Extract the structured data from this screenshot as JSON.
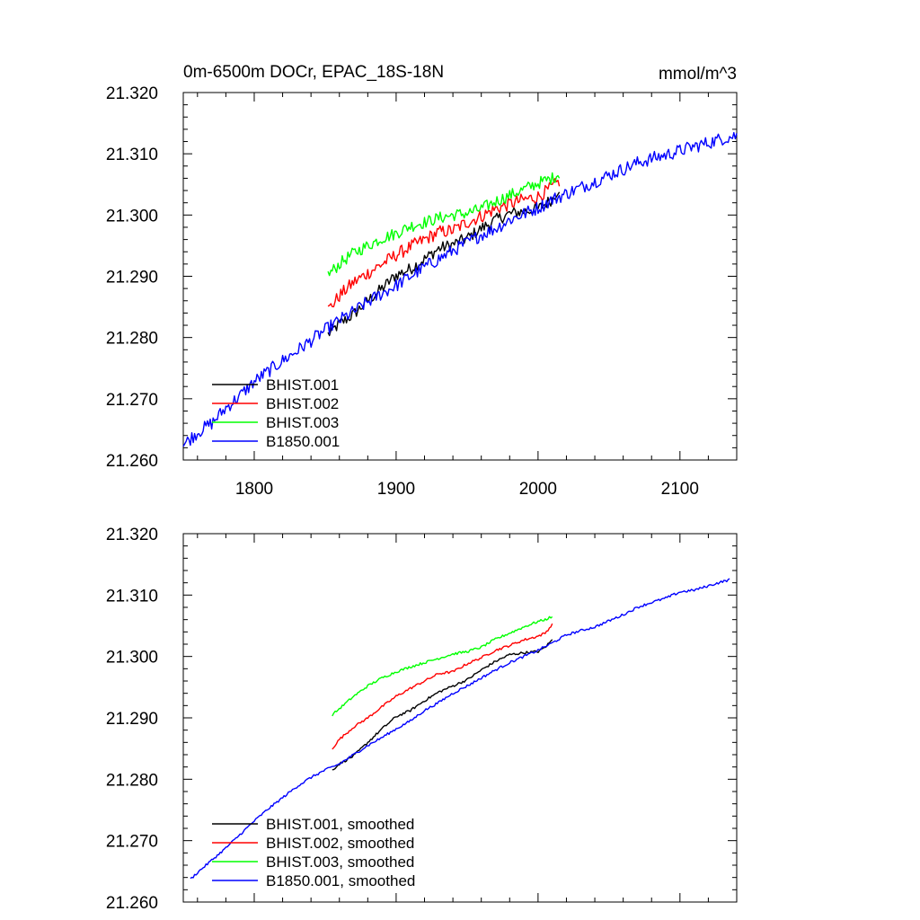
{
  "chart_data": [
    {
      "type": "line",
      "title": "0m-6500m DOCr, EPAC_18S-18N",
      "units": "mmol/m^3",
      "xlim": [
        1750,
        2140
      ],
      "ylim": [
        21.26,
        21.32
      ],
      "xticks": [
        "1800",
        "1900",
        "2000",
        "2100"
      ],
      "yticks": [
        "21.260",
        "21.270",
        "21.280",
        "21.290",
        "21.300",
        "21.310",
        "21.320"
      ],
      "legend_position": "lower-left",
      "series": [
        {
          "name": "BHIST.001",
          "color": "#000000",
          "x": [
            1852,
            1860,
            1870,
            1880,
            1890,
            1900,
            1910,
            1920,
            1930,
            1940,
            1950,
            1960,
            1970,
            1980,
            1990,
            2000,
            2010,
            2015
          ],
          "y": [
            21.2805,
            21.2822,
            21.2838,
            21.286,
            21.288,
            21.2902,
            21.2912,
            21.2928,
            21.2945,
            21.2952,
            21.2962,
            21.2978,
            21.2992,
            21.3002,
            21.3006,
            21.301,
            21.3026,
            21.3045
          ],
          "noise": 0.001
        },
        {
          "name": "BHIST.002",
          "color": "#ff0000",
          "x": [
            1852,
            1860,
            1870,
            1880,
            1890,
            1900,
            1910,
            1920,
            1930,
            1940,
            1950,
            1960,
            1970,
            1980,
            1990,
            2000,
            2010,
            2015
          ],
          "y": [
            21.2845,
            21.2868,
            21.289,
            21.2905,
            21.292,
            21.2935,
            21.2948,
            21.296,
            21.2972,
            21.2975,
            21.2988,
            21.2998,
            21.301,
            21.3018,
            21.3025,
            21.303,
            21.3045,
            21.3055
          ],
          "noise": 0.0011
        },
        {
          "name": "BHIST.003",
          "color": "#00ff00",
          "x": [
            1852,
            1860,
            1870,
            1880,
            1890,
            1900,
            1910,
            1920,
            1930,
            1940,
            1950,
            1960,
            1970,
            1980,
            1990,
            2000,
            2010,
            2015
          ],
          "y": [
            21.2902,
            21.292,
            21.2938,
            21.295,
            21.2962,
            21.297,
            21.2982,
            21.2988,
            21.2995,
            21.3,
            21.3003,
            21.301,
            21.3022,
            21.3032,
            21.3042,
            21.3052,
            21.306,
            21.3068
          ],
          "noise": 0.001
        },
        {
          "name": "B1850.001",
          "color": "#0000ff",
          "x": [
            1750,
            1760,
            1770,
            1780,
            1790,
            1800,
            1810,
            1820,
            1830,
            1840,
            1850,
            1860,
            1870,
            1880,
            1890,
            1900,
            1910,
            1920,
            1930,
            1940,
            1950,
            1960,
            1970,
            1980,
            1990,
            2000,
            2010,
            2020,
            2030,
            2040,
            2050,
            2060,
            2070,
            2080,
            2090,
            2100,
            2110,
            2120,
            2130,
            2140
          ],
          "y": [
            21.2625,
            21.2645,
            21.266,
            21.2685,
            21.2705,
            21.2728,
            21.2745,
            21.2762,
            21.2778,
            21.2795,
            21.2812,
            21.2828,
            21.2842,
            21.2858,
            21.2872,
            21.2885,
            21.29,
            21.2915,
            21.2928,
            21.2942,
            21.2955,
            21.2968,
            21.2978,
            21.2992,
            21.3002,
            21.3012,
            21.3025,
            21.3035,
            21.3045,
            21.3055,
            21.3065,
            21.3075,
            21.3085,
            21.3092,
            21.3098,
            21.3105,
            21.3112,
            21.3118,
            21.3125,
            21.313
          ],
          "noise": 0.0011
        }
      ]
    },
    {
      "type": "line",
      "title": "",
      "units": "",
      "xlim": [
        1750,
        2140
      ],
      "ylim": [
        21.26,
        21.32
      ],
      "xticks": [],
      "yticks": [
        "21.260",
        "21.270",
        "21.280",
        "21.290",
        "21.300",
        "21.310",
        "21.320"
      ],
      "legend_position": "lower-left",
      "series": [
        {
          "name": "BHIST.001, smoothed",
          "color": "#000000",
          "x": [
            1855,
            1860,
            1870,
            1880,
            1890,
            1900,
            1910,
            1920,
            1930,
            1940,
            1950,
            1960,
            1970,
            1980,
            1990,
            2000,
            2005,
            2010
          ],
          "y": [
            21.2815,
            21.2825,
            21.2838,
            21.286,
            21.2882,
            21.2902,
            21.2912,
            21.2928,
            21.2942,
            21.2952,
            21.2962,
            21.2978,
            21.2992,
            21.3003,
            21.3006,
            21.3008,
            21.3015,
            21.3027
          ],
          "noise": 0.0002
        },
        {
          "name": "BHIST.002, smoothed",
          "color": "#ff0000",
          "x": [
            1855,
            1860,
            1870,
            1880,
            1890,
            1900,
            1910,
            1920,
            1930,
            1940,
            1950,
            1960,
            1970,
            1980,
            1990,
            2000,
            2005,
            2010
          ],
          "y": [
            21.285,
            21.2865,
            21.2885,
            21.29,
            21.2918,
            21.2935,
            21.2948,
            21.296,
            21.2972,
            21.2975,
            21.2988,
            21.2998,
            21.301,
            21.3018,
            21.3027,
            21.3033,
            21.3038,
            21.3052
          ],
          "noise": 0.0002
        },
        {
          "name": "BHIST.003, smoothed",
          "color": "#00ff00",
          "x": [
            1855,
            1860,
            1870,
            1880,
            1890,
            1900,
            1910,
            1920,
            1930,
            1940,
            1950,
            1960,
            1970,
            1980,
            1990,
            2000,
            2005,
            2010
          ],
          "y": [
            21.2905,
            21.2915,
            21.2935,
            21.2952,
            21.2965,
            21.2975,
            21.2983,
            21.299,
            21.2997,
            21.3004,
            21.3008,
            21.3015,
            21.3028,
            21.3038,
            21.3048,
            21.3057,
            21.306,
            21.3065
          ],
          "noise": 0.0002
        },
        {
          "name": "B1850.001, smoothed",
          "color": "#0000ff",
          "x": [
            1755,
            1760,
            1770,
            1780,
            1790,
            1800,
            1810,
            1820,
            1830,
            1840,
            1850,
            1860,
            1870,
            1880,
            1890,
            1900,
            1910,
            1920,
            1930,
            1940,
            1950,
            1960,
            1970,
            1980,
            1990,
            2000,
            2010,
            2020,
            2030,
            2040,
            2050,
            2060,
            2070,
            2080,
            2090,
            2100,
            2110,
            2120,
            2130,
            2135
          ],
          "y": [
            21.2637,
            21.2648,
            21.2668,
            21.2688,
            21.271,
            21.2732,
            21.2752,
            21.277,
            21.2788,
            21.2803,
            21.2815,
            21.2825,
            21.284,
            21.2855,
            21.2868,
            21.2882,
            21.2895,
            21.2912,
            21.2925,
            21.294,
            21.2952,
            21.2965,
            21.2978,
            21.299,
            21.3,
            21.301,
            21.3022,
            21.3035,
            21.3042,
            21.3048,
            21.3058,
            21.3068,
            21.308,
            21.3088,
            21.3095,
            21.3105,
            21.3108,
            21.3115,
            21.3122,
            21.3125
          ],
          "noise": 0.0002
        }
      ]
    }
  ]
}
